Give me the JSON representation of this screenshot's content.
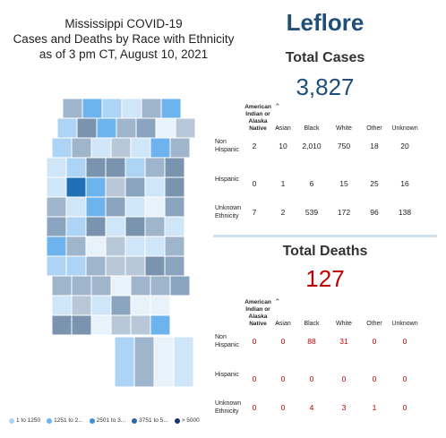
{
  "header": {
    "title_lines": [
      "Mississippi COVID-19",
      "Cases and Deaths by Race with Ethnicity",
      "as of 3 pm CT, August 10, 2021"
    ],
    "county": "Leflore"
  },
  "cases": {
    "title": "Total Cases",
    "total": "3,827"
  },
  "deaths": {
    "title": "Total Deaths",
    "total": "127"
  },
  "table_headers": [
    "American Indian or Alaska Native",
    "Asian",
    "Black",
    "White",
    "Other",
    "Unknown"
  ],
  "row_labels": [
    "Non Hispanic",
    "Hispanic",
    "Unknown Ethnicity"
  ],
  "legend": [
    {
      "label": "1 to 1250",
      "color": "#aed4f5"
    },
    {
      "label": "1251 to 2...",
      "color": "#6db3ee"
    },
    {
      "label": "2501 to 3...",
      "color": "#3f8fdc"
    },
    {
      "label": "3751 to 5...",
      "color": "#2a6aa8"
    },
    {
      "label": "> 5000",
      "color": "#17386a"
    }
  ],
  "colors": {
    "selected": "#1f6fb5",
    "map_grey": "#8aa3bf",
    "cases": "#1f4e79",
    "deaths": "#c00000"
  },
  "chart_data": [
    {
      "type": "table",
      "title": "Total Cases",
      "columns": [
        "American Indian or Alaska Native",
        "Asian",
        "Black",
        "White",
        "Other",
        "Unknown"
      ],
      "rows": [
        {
          "label": "Non Hispanic",
          "values": [
            "2",
            "10",
            "2,010",
            "750",
            "18",
            "20"
          ]
        },
        {
          "label": "Hispanic",
          "values": [
            "0",
            "1",
            "6",
            "15",
            "25",
            "16"
          ]
        },
        {
          "label": "Unknown Ethnicity",
          "values": [
            "7",
            "2",
            "539",
            "172",
            "96",
            "138"
          ]
        }
      ]
    },
    {
      "type": "table",
      "title": "Total Deaths",
      "columns": [
        "American Indian or Alaska Native",
        "Asian",
        "Black",
        "White",
        "Other",
        "Unknown"
      ],
      "rows": [
        {
          "label": "Non Hispanic",
          "values": [
            "0",
            "0",
            "88",
            "31",
            "0",
            "0"
          ]
        },
        {
          "label": "Hispanic",
          "values": [
            "0",
            "0",
            "0",
            "0",
            "0",
            "0"
          ]
        },
        {
          "label": "Unknown Ethnicity",
          "values": [
            "0",
            "0",
            "4",
            "3",
            "1",
            "0"
          ]
        }
      ]
    }
  ]
}
